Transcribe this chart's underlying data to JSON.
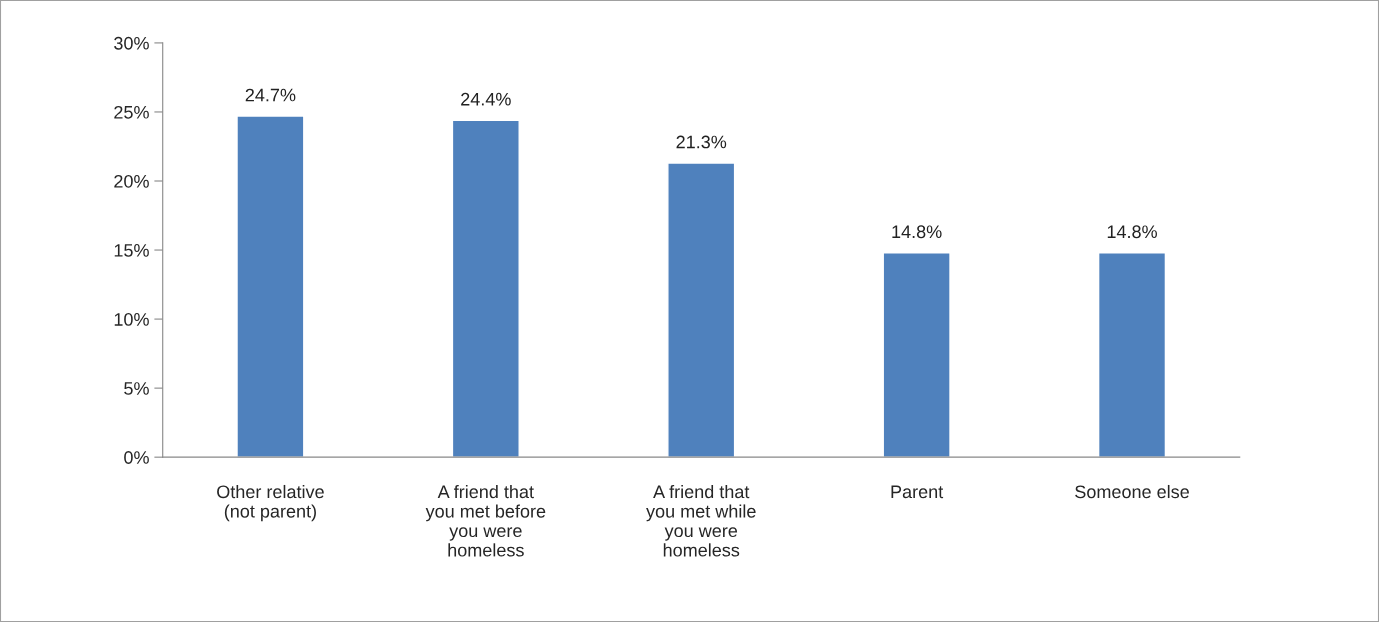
{
  "chart_data": {
    "type": "bar",
    "categories": [
      "Other relative (not parent)",
      "A friend that you met before you were homeless",
      "A friend that you met while you were homeless",
      "Parent",
      "Someone else"
    ],
    "values": [
      24.7,
      24.4,
      21.3,
      14.8,
      14.8
    ],
    "value_labels": [
      "24.7%",
      "24.4%",
      "21.3%",
      "14.8%",
      "14.8%"
    ],
    "color": "#4f81bd",
    "ylim": [
      0,
      30
    ],
    "yticks": [
      {
        "value": 0,
        "label": "0%"
      },
      {
        "value": 5,
        "label": "5%"
      },
      {
        "value": 10,
        "label": "10%"
      },
      {
        "value": 15,
        "label": "15%"
      },
      {
        "value": 20,
        "label": "20%"
      },
      {
        "value": 25,
        "label": "25%"
      },
      {
        "value": 30,
        "label": "30%"
      }
    ],
    "grid": false,
    "legend": false
  }
}
